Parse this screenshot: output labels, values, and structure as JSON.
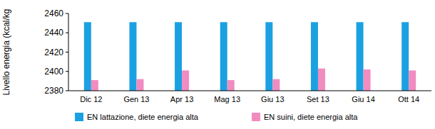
{
  "chart_data": {
    "type": "bar",
    "y_label": "Livello energia (kcal/kg",
    "categories": [
      "Dic 12",
      "Gen 13",
      "Apr 13",
      "Mag 13",
      "Giu 13",
      "Set 13",
      "Giu 14",
      "Ott 14"
    ],
    "series": [
      {
        "name": "EN lattazione, diete energia alta",
        "color": "#1ba1e2",
        "values": [
          2451,
          2451,
          2451,
          2451,
          2451,
          2451,
          2451,
          2451
        ]
      },
      {
        "name": "EN suini, diete energia alta",
        "color": "#f08cc0",
        "values": [
          2391,
          2392,
          2401,
          2391,
          2392,
          2403,
          2402,
          2401
        ]
      }
    ],
    "ylim": [
      2380,
      2460
    ],
    "yticks": [
      2380,
      2400,
      2420,
      2440,
      2460
    ],
    "grid": false,
    "legend": "bottom"
  }
}
